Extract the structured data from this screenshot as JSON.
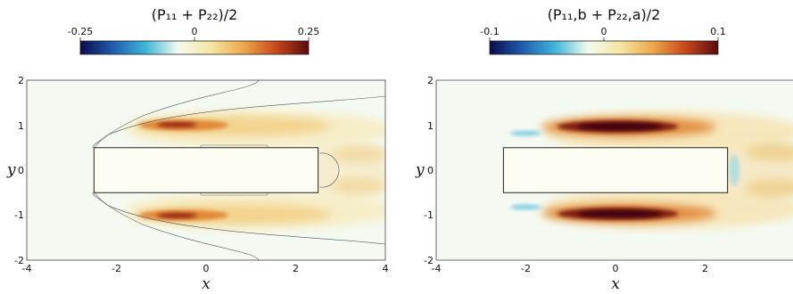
{
  "chart_data": [
    {
      "type": "heatmap",
      "title": "(P₁₁ + P₂₂)/2",
      "xlabel": "x",
      "ylabel": "y",
      "xlim": [
        -4,
        4
      ],
      "ylim": [
        -2,
        2
      ],
      "xticks": [
        "-4",
        "-2",
        "0",
        "2",
        "4"
      ],
      "yticks": [
        "2",
        "1",
        "0",
        "-1",
        "-2"
      ],
      "colorbar": {
        "range": [
          -0.25,
          0.25
        ],
        "ticks": [
          "-0.25",
          "0",
          "0.25"
        ],
        "colors": [
          "#0b0b4a",
          "#1f5cb0",
          "#3fb6d8",
          "#f2fbf0",
          "#f6e6a2",
          "#eda84a",
          "#c8471b",
          "#5a0a0e"
        ]
      },
      "obstacle": {
        "x0": -2.5,
        "x1": 2.5,
        "y0": -0.5,
        "y1": 0.5
      },
      "max": 0.25
    },
    {
      "type": "heatmap",
      "title": "(P₁₁,b + P₂₂,a)/2",
      "xlabel": "x",
      "ylabel": "y",
      "xlim": [
        -4,
        4
      ],
      "ylim": [
        -2,
        2
      ],
      "xticks": [
        "-4",
        "-2",
        "0",
        "2"
      ],
      "yticks": [
        "2",
        "1",
        "0",
        "-1",
        "-2"
      ],
      "colorbar": {
        "range": [
          -0.1,
          0.1
        ],
        "ticks": [
          "-0.1",
          "0",
          "0.1"
        ],
        "colors": [
          "#0b0b4a",
          "#1f5cb0",
          "#3fb6d8",
          "#f2fbf0",
          "#f6e6a2",
          "#eda84a",
          "#c8471b",
          "#5a0a0e"
        ]
      },
      "obstacle": {
        "x0": -2.5,
        "x1": 2.5,
        "y0": -0.5,
        "y1": 0.5
      },
      "max": 0.1
    }
  ]
}
